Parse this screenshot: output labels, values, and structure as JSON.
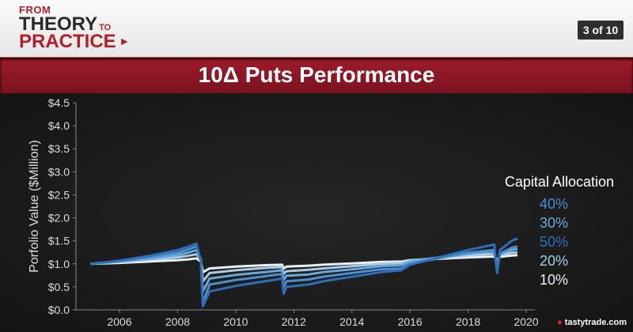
{
  "header": {
    "logo_from": "FROM",
    "logo_theory": "THEORY",
    "logo_to": "TO",
    "logo_practice": "PRACTICE",
    "page_indicator": "3 of 10",
    "brand": "tastytrade.com"
  },
  "title": "10Δ Puts Performance",
  "chart_data": {
    "type": "line",
    "title": "10Δ Puts Performance",
    "xlabel": "",
    "ylabel": "Porfolio Value ($Million)",
    "xlim": [
      2004.5,
      2020.3
    ],
    "ylim": [
      0,
      4.5
    ],
    "x_ticks": [
      2006,
      2008,
      2010,
      2012,
      2014,
      2016,
      2018,
      2020
    ],
    "y_ticks": [
      0,
      0.5,
      1.0,
      1.5,
      2.0,
      2.5,
      3.0,
      3.5,
      4.0,
      4.5
    ],
    "y_tick_labels": [
      "$0.0",
      "$0.5",
      "$1.0",
      "$1.5",
      "$2.0",
      "$2.5",
      "$3.0",
      "$3.5",
      "$4.0",
      "$4.5"
    ],
    "legend_title": "Capital Allocation",
    "legend_placement": "right",
    "grid": false,
    "series": [
      {
        "name": "40%",
        "color": "#4a90d0",
        "points": [
          [
            2005.0,
            1.0
          ],
          [
            2006.0,
            1.06
          ],
          [
            2007.0,
            1.14
          ],
          [
            2008.0,
            1.24
          ],
          [
            2008.4,
            1.32
          ],
          [
            2008.65,
            1.38
          ],
          [
            2008.8,
            1.08
          ],
          [
            2008.87,
            0.15
          ],
          [
            2009.1,
            0.55
          ],
          [
            2010.0,
            0.65
          ],
          [
            2011.0,
            0.73
          ],
          [
            2011.6,
            0.78
          ],
          [
            2011.65,
            0.5
          ],
          [
            2011.75,
            0.62
          ],
          [
            2012.5,
            0.66
          ],
          [
            2013.0,
            0.72
          ],
          [
            2014.0,
            0.8
          ],
          [
            2015.0,
            0.88
          ],
          [
            2015.7,
            0.9
          ],
          [
            2016.0,
            1.0
          ],
          [
            2017.0,
            1.12
          ],
          [
            2018.0,
            1.24
          ],
          [
            2018.9,
            1.3
          ],
          [
            2019.0,
            0.85
          ],
          [
            2019.1,
            1.22
          ],
          [
            2019.5,
            1.35
          ],
          [
            2019.7,
            1.38
          ]
        ]
      },
      {
        "name": "30%",
        "color": "#6aa8dc",
        "points": [
          [
            2005.0,
            1.0
          ],
          [
            2006.0,
            1.05
          ],
          [
            2007.0,
            1.11
          ],
          [
            2008.0,
            1.19
          ],
          [
            2008.4,
            1.25
          ],
          [
            2008.65,
            1.3
          ],
          [
            2008.8,
            1.1
          ],
          [
            2008.87,
            0.4
          ],
          [
            2009.1,
            0.68
          ],
          [
            2010.0,
            0.76
          ],
          [
            2011.0,
            0.82
          ],
          [
            2011.6,
            0.86
          ],
          [
            2011.65,
            0.65
          ],
          [
            2011.75,
            0.74
          ],
          [
            2012.5,
            0.77
          ],
          [
            2013.0,
            0.82
          ],
          [
            2014.0,
            0.88
          ],
          [
            2015.0,
            0.95
          ],
          [
            2015.7,
            0.97
          ],
          [
            2016.0,
            1.05
          ],
          [
            2017.0,
            1.14
          ],
          [
            2018.0,
            1.22
          ],
          [
            2018.9,
            1.28
          ],
          [
            2019.0,
            0.95
          ],
          [
            2019.1,
            1.22
          ],
          [
            2019.5,
            1.3
          ],
          [
            2019.7,
            1.32
          ]
        ]
      },
      {
        "name": "50%",
        "color": "#2e6fb8",
        "points": [
          [
            2005.0,
            1.0
          ],
          [
            2006.0,
            1.07
          ],
          [
            2007.0,
            1.17
          ],
          [
            2008.0,
            1.3
          ],
          [
            2008.4,
            1.38
          ],
          [
            2008.65,
            1.44
          ],
          [
            2008.8,
            1.05
          ],
          [
            2008.87,
            0.08
          ],
          [
            2009.1,
            0.4
          ],
          [
            2010.0,
            0.52
          ],
          [
            2011.0,
            0.62
          ],
          [
            2011.6,
            0.68
          ],
          [
            2011.65,
            0.35
          ],
          [
            2011.75,
            0.5
          ],
          [
            2012.5,
            0.55
          ],
          [
            2013.0,
            0.62
          ],
          [
            2014.0,
            0.72
          ],
          [
            2015.0,
            0.82
          ],
          [
            2015.7,
            0.86
          ],
          [
            2016.0,
            0.98
          ],
          [
            2017.0,
            1.14
          ],
          [
            2018.0,
            1.3
          ],
          [
            2018.9,
            1.42
          ],
          [
            2019.0,
            0.8
          ],
          [
            2019.1,
            1.3
          ],
          [
            2019.5,
            1.5
          ],
          [
            2019.7,
            1.55
          ]
        ]
      },
      {
        "name": "20%",
        "color": "#a9cbe8",
        "points": [
          [
            2005.0,
            1.0
          ],
          [
            2006.0,
            1.04
          ],
          [
            2007.0,
            1.09
          ],
          [
            2008.0,
            1.14
          ],
          [
            2008.4,
            1.18
          ],
          [
            2008.65,
            1.21
          ],
          [
            2008.8,
            1.1
          ],
          [
            2008.87,
            0.62
          ],
          [
            2009.1,
            0.8
          ],
          [
            2010.0,
            0.86
          ],
          [
            2011.0,
            0.91
          ],
          [
            2011.6,
            0.93
          ],
          [
            2011.65,
            0.78
          ],
          [
            2011.75,
            0.84
          ],
          [
            2012.5,
            0.87
          ],
          [
            2013.0,
            0.9
          ],
          [
            2014.0,
            0.95
          ],
          [
            2015.0,
            1.0
          ],
          [
            2015.7,
            1.02
          ],
          [
            2016.0,
            1.07
          ],
          [
            2017.0,
            1.13
          ],
          [
            2018.0,
            1.18
          ],
          [
            2018.9,
            1.22
          ],
          [
            2019.0,
            1.02
          ],
          [
            2019.1,
            1.18
          ],
          [
            2019.5,
            1.24
          ],
          [
            2019.7,
            1.25
          ]
        ]
      },
      {
        "name": "10%",
        "color": "#e8f0f8",
        "points": [
          [
            2005.0,
            1.0
          ],
          [
            2006.0,
            1.02
          ],
          [
            2007.0,
            1.05
          ],
          [
            2008.0,
            1.08
          ],
          [
            2008.4,
            1.1
          ],
          [
            2008.65,
            1.12
          ],
          [
            2008.8,
            1.05
          ],
          [
            2008.87,
            0.82
          ],
          [
            2009.1,
            0.9
          ],
          [
            2010.0,
            0.94
          ],
          [
            2011.0,
            0.97
          ],
          [
            2011.6,
            0.98
          ],
          [
            2011.65,
            0.9
          ],
          [
            2011.75,
            0.94
          ],
          [
            2012.5,
            0.96
          ],
          [
            2013.0,
            0.98
          ],
          [
            2014.0,
            1.01
          ],
          [
            2015.0,
            1.04
          ],
          [
            2015.7,
            1.05
          ],
          [
            2016.0,
            1.08
          ],
          [
            2017.0,
            1.11
          ],
          [
            2018.0,
            1.14
          ],
          [
            2018.9,
            1.16
          ],
          [
            2019.0,
            1.08
          ],
          [
            2019.1,
            1.15
          ],
          [
            2019.5,
            1.18
          ],
          [
            2019.7,
            1.19
          ]
        ]
      }
    ]
  }
}
